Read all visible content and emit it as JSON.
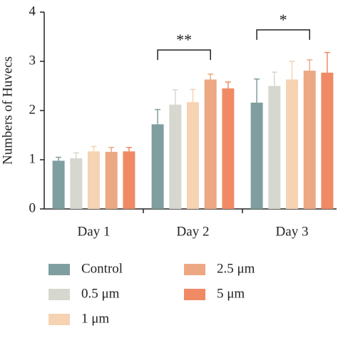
{
  "chart_data": {
    "type": "bar",
    "y_label": "Numbers of Huvecs",
    "categories": [
      "Day 1",
      "Day 2",
      "Day 3"
    ],
    "series": [
      {
        "name": "Control",
        "color": "#7f9e9f",
        "values": [
          0.98,
          1.72,
          2.16
        ],
        "errors": [
          0.07,
          0.3,
          0.48
        ]
      },
      {
        "name": "0.5 μm",
        "color": "#d6d8cf",
        "values": [
          1.03,
          2.12,
          2.5
        ],
        "errors": [
          0.11,
          0.3,
          0.28
        ]
      },
      {
        "name": "1 μm",
        "color": "#f6d3b3",
        "values": [
          1.17,
          2.17,
          2.63
        ],
        "errors": [
          0.1,
          0.26,
          0.37
        ]
      },
      {
        "name": "2.5 μm",
        "color": "#eba882",
        "values": [
          1.16,
          2.63,
          2.81
        ],
        "errors": [
          0.09,
          0.11,
          0.22
        ]
      },
      {
        "name": "5 μm",
        "color": "#f08a65",
        "values": [
          1.17,
          2.45,
          2.77
        ],
        "errors": [
          0.08,
          0.13,
          0.41
        ]
      }
    ],
    "annotations": [
      {
        "text": "**",
        "category": 1,
        "from": 0,
        "to": 3,
        "y": 3.23
      },
      {
        "text": "*",
        "category": 2,
        "from": 0,
        "to": 3,
        "y": 3.64
      }
    ],
    "ylim": [
      0,
      4
    ],
    "yticks": [
      0,
      1,
      2,
      3,
      4
    ]
  }
}
